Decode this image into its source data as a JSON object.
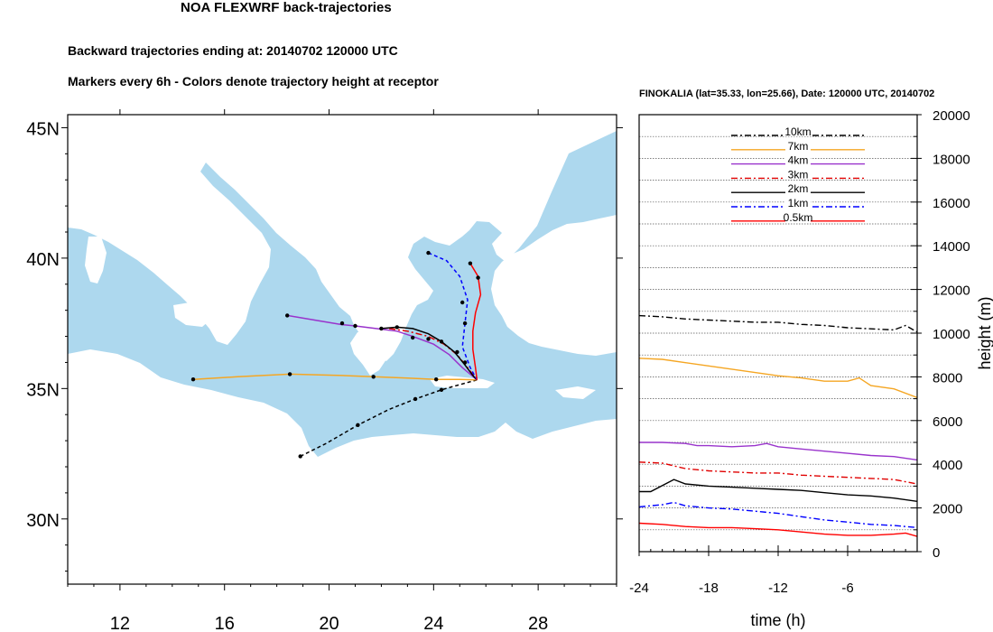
{
  "page": {
    "title": "NOA FLEXWRF back-trajectories",
    "subtitle1": "Backward trajectories ending at: 20140702  120000 UTC",
    "subtitle2": "Markers every 6h - Colors denote trajectory height at receptor"
  },
  "colors": {
    "sea": "#add8ee",
    "land": "#ffffff",
    "0.5km": "#ff0000",
    "1km": "#0000ff",
    "2km": "#000000",
    "3km": "#e00000",
    "4km": "#9933cc",
    "7km": "#f5a623",
    "10km": "#000000"
  },
  "chart_data": [
    {
      "type": "line",
      "subtype": "map-trajectories",
      "title": "",
      "xlim": [
        10,
        31
      ],
      "ylim": [
        27.5,
        45.5
      ],
      "x_ticks": [
        12,
        16,
        20,
        24,
        28
      ],
      "x_tick_labels": [
        "12",
        "16",
        "20",
        "24",
        "28"
      ],
      "y_ticks": [
        30,
        35,
        40,
        45
      ],
      "y_tick_labels": [
        "30N",
        "35N",
        "40N",
        "45N"
      ],
      "receptor": {
        "lon": 25.66,
        "lat": 35.33
      },
      "series": [
        {
          "name": "10km",
          "style": "dash",
          "color": "#000000",
          "lon": [
            18.9,
            19.9,
            21.1,
            22.3,
            23.3,
            24.3,
            25.0,
            25.66
          ],
          "lat": [
            32.4,
            32.9,
            33.6,
            34.2,
            34.6,
            34.95,
            35.15,
            35.33
          ],
          "markers": [
            [
              18.9,
              32.4
            ],
            [
              21.1,
              33.6
            ],
            [
              23.3,
              34.6
            ],
            [
              24.3,
              34.95
            ]
          ]
        },
        {
          "name": "7km",
          "style": "solid",
          "color": "#f5a623",
          "lon": [
            14.8,
            16.5,
            18.5,
            20.5,
            21.7,
            23.0,
            24.1,
            25.0,
            25.66
          ],
          "lat": [
            35.35,
            35.45,
            35.55,
            35.5,
            35.45,
            35.4,
            35.35,
            35.35,
            35.33
          ],
          "markers": [
            [
              14.8,
              35.35
            ],
            [
              18.5,
              35.55
            ],
            [
              21.7,
              35.45
            ],
            [
              24.1,
              35.35
            ]
          ]
        },
        {
          "name": "4km",
          "style": "solid",
          "color": "#9933cc",
          "lon": [
            18.4,
            19.6,
            20.5,
            21.0,
            21.8,
            22.6,
            23.2,
            24.0,
            24.6,
            25.1,
            25.66
          ],
          "lat": [
            37.8,
            37.6,
            37.45,
            37.4,
            37.3,
            37.2,
            37.0,
            36.7,
            36.3,
            35.8,
            35.33
          ],
          "markers": [
            [
              18.4,
              37.8
            ],
            [
              20.5,
              37.5
            ],
            [
              21.0,
              37.4
            ],
            [
              23.2,
              36.95
            ]
          ]
        },
        {
          "name": "3km",
          "style": "dashdot",
          "color": "#e00000",
          "lon": [
            22.3,
            23.0,
            23.8,
            24.4,
            24.9,
            25.3,
            25.66
          ],
          "lat": [
            37.3,
            37.2,
            37.0,
            36.7,
            36.3,
            35.8,
            35.33
          ],
          "markers": [
            [
              23.8,
              36.9
            ],
            [
              24.9,
              36.4
            ]
          ]
        },
        {
          "name": "2km",
          "style": "solid",
          "color": "#000000",
          "lon": [
            22.0,
            22.6,
            23.2,
            23.8,
            24.3,
            24.8,
            25.2,
            25.5,
            25.66
          ],
          "lat": [
            37.3,
            37.35,
            37.3,
            37.1,
            36.8,
            36.4,
            35.9,
            35.5,
            35.33
          ],
          "markers": [
            [
              22.0,
              37.3
            ],
            [
              22.6,
              37.35
            ],
            [
              24.3,
              36.8
            ],
            [
              25.2,
              36.0
            ]
          ]
        },
        {
          "name": "1km",
          "style": "dash",
          "color": "#0000ff",
          "lon": [
            23.8,
            24.5,
            25.0,
            25.3,
            25.2,
            25.1,
            25.4,
            25.66
          ],
          "lat": [
            40.2,
            39.9,
            39.3,
            38.4,
            37.5,
            36.6,
            35.8,
            35.33
          ],
          "markers": [
            [
              23.8,
              40.2
            ],
            [
              25.1,
              38.3
            ],
            [
              25.2,
              37.5
            ]
          ]
        },
        {
          "name": "0.5km",
          "style": "solid",
          "color": "#ff0000",
          "lon": [
            25.4,
            25.7,
            25.8,
            25.6,
            25.5,
            25.5,
            25.6,
            25.66
          ],
          "lat": [
            39.8,
            39.3,
            38.6,
            37.9,
            37.2,
            36.5,
            35.8,
            35.33
          ],
          "markers": [
            [
              25.4,
              39.8
            ],
            [
              25.7,
              39.25
            ]
          ]
        }
      ]
    },
    {
      "type": "line",
      "title": "FINOKALIA (lat=35.33,  lon=25.66), Date: 120000 UTC, 20140702",
      "xlabel": "time (h)",
      "ylabel": "height (m)",
      "xlim": [
        -24,
        0
      ],
      "ylim": [
        0,
        20000
      ],
      "x_ticks": [
        -24,
        -18,
        -12,
        -6
      ],
      "x_tick_labels": [
        "-24",
        "-18",
        "-12",
        "-6"
      ],
      "y_ticks": [
        0,
        2000,
        4000,
        6000,
        8000,
        10000,
        12000,
        14000,
        16000,
        18000,
        20000
      ],
      "y_tick_labels": [
        "0",
        "2000",
        "4000",
        "6000",
        "8000",
        "10000",
        "12000",
        "14000",
        "16000",
        "18000",
        "20000"
      ],
      "grid": true,
      "legend_position": "top-center",
      "series": [
        {
          "name": "10km",
          "style": "dashdot",
          "color": "#000000",
          "x": [
            -24,
            -22,
            -20,
            -18,
            -16,
            -14,
            -12,
            -10,
            -8,
            -6,
            -4,
            -2,
            -1,
            0
          ],
          "y": [
            10800,
            10750,
            10650,
            10600,
            10550,
            10500,
            10500,
            10400,
            10350,
            10250,
            10200,
            10150,
            10350,
            10050
          ]
        },
        {
          "name": "7km",
          "style": "solid",
          "color": "#f5a623",
          "x": [
            -24,
            -22,
            -20,
            -18,
            -16,
            -14,
            -12,
            -10,
            -8,
            -6,
            -5,
            -4,
            -2,
            0
          ],
          "y": [
            8850,
            8800,
            8650,
            8500,
            8350,
            8200,
            8050,
            7950,
            7800,
            7800,
            7950,
            7600,
            7450,
            7050
          ]
        },
        {
          "name": "4km",
          "style": "solid",
          "color": "#9933cc",
          "x": [
            -24,
            -22,
            -20,
            -19,
            -18,
            -16,
            -14,
            -13,
            -12,
            -10,
            -8,
            -6,
            -4,
            -2,
            0
          ],
          "y": [
            5000,
            5000,
            4950,
            4850,
            4850,
            4800,
            4850,
            4950,
            4800,
            4700,
            4600,
            4500,
            4400,
            4350,
            4200
          ]
        },
        {
          "name": "3km",
          "style": "dashdot",
          "color": "#e00000",
          "x": [
            -24,
            -22,
            -20,
            -18,
            -16,
            -14,
            -12,
            -10,
            -8,
            -6,
            -4,
            -2,
            0
          ],
          "y": [
            4100,
            4050,
            3800,
            3700,
            3650,
            3600,
            3600,
            3500,
            3450,
            3400,
            3350,
            3300,
            3100
          ]
        },
        {
          "name": "2km",
          "style": "solid",
          "color": "#000000",
          "x": [
            -24,
            -23,
            -21,
            -20,
            -18,
            -16,
            -14,
            -12,
            -10,
            -8,
            -6,
            -4,
            -2,
            0
          ],
          "y": [
            2750,
            2750,
            3300,
            3100,
            3000,
            2950,
            2900,
            2850,
            2800,
            2700,
            2600,
            2550,
            2450,
            2300
          ]
        },
        {
          "name": "1km",
          "style": "dashdot",
          "color": "#0000ff",
          "x": [
            -24,
            -22,
            -21,
            -20,
            -18,
            -16,
            -14,
            -12,
            -10,
            -8,
            -6,
            -4,
            -2,
            0
          ],
          "y": [
            2050,
            2150,
            2250,
            2100,
            2000,
            1950,
            1850,
            1750,
            1600,
            1450,
            1350,
            1250,
            1200,
            1100
          ]
        },
        {
          "name": "0.5km",
          "style": "solid",
          "color": "#ff0000",
          "x": [
            -24,
            -22,
            -20,
            -18,
            -16,
            -14,
            -12,
            -10,
            -8,
            -6,
            -4,
            -2,
            -1,
            0
          ],
          "y": [
            1300,
            1250,
            1150,
            1100,
            1100,
            1050,
            1000,
            900,
            800,
            750,
            750,
            800,
            850,
            700
          ]
        }
      ],
      "legend": [
        "10km",
        "7km",
        "4km",
        "3km",
        "2km",
        "1km",
        "0.5km"
      ]
    }
  ]
}
